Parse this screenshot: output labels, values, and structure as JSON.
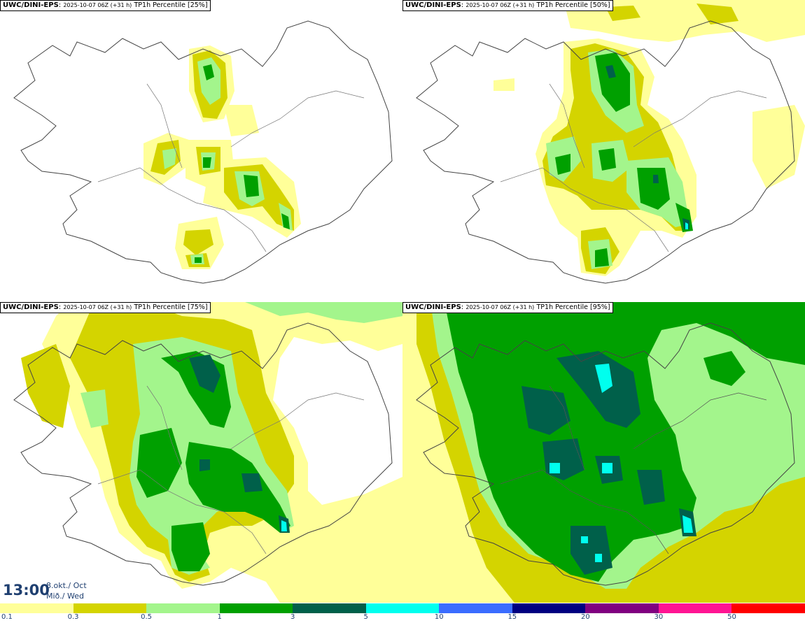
{
  "panels": [
    {
      "model": "UWC/DINI-EPS",
      "run": "2025-10-07 06Z (+31 h)",
      "field": "TP1h Percentile [25%]"
    },
    {
      "model": "UWC/DINI-EPS",
      "run": "2025-10-07 06Z (+31 h)",
      "field": "TP1h Percentile [50%]"
    },
    {
      "model": "UWC/DINI-EPS",
      "run": "2025-10-07 06Z (+31 h)",
      "field": "TP1h Percentile [75%]"
    },
    {
      "model": "UWC/DINI-EPS",
      "run": "2025-10-07 06Z (+31 h)",
      "field": "TP1h Percentile [95%]"
    }
  ],
  "valid_time": {
    "time": "13:00",
    "date_line1": "8.okt./ Oct",
    "date_line2": "Mið./ Wed"
  },
  "legend": {
    "colors": [
      "#ffff99",
      "#d4d400",
      "#a3f58c",
      "#00a000",
      "#00604a",
      "#00ffee",
      "#3a6cff",
      "#000080",
      "#800080",
      "#ff1493",
      "#ff0000"
    ],
    "ticks": [
      "0.1",
      "0.3",
      "0.5",
      "1",
      "3",
      "5",
      "10",
      "15",
      "20",
      "30",
      "50"
    ]
  }
}
